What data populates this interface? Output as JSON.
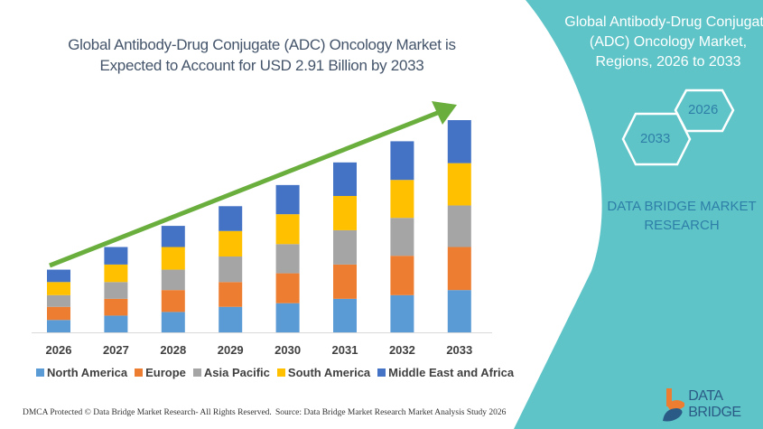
{
  "colors": {
    "panel": "#5fc4c7",
    "arrow": "#6aaf3d",
    "north_america": "#5b9bd5",
    "europe": "#ed7d31",
    "asia_pacific": "#a5a5a5",
    "south_america": "#ffc000",
    "mea": "#4472c4"
  },
  "chart_data": {
    "type": "bar",
    "stacked": true,
    "title": "Global Antibody-Drug Conjugate (ADC) Oncology Market is Expected to Account for USD 2.91 Billion by 2033",
    "categories": [
      "2026",
      "2027",
      "2028",
      "2029",
      "2030",
      "2031",
      "2032",
      "2033"
    ],
    "series": [
      {
        "name": "North America",
        "values": [
          0.17,
          0.23,
          0.28,
          0.35,
          0.4,
          0.46,
          0.51,
          0.58
        ]
      },
      {
        "name": "Europe",
        "values": [
          0.18,
          0.23,
          0.3,
          0.34,
          0.41,
          0.47,
          0.54,
          0.59
        ]
      },
      {
        "name": "Asia Pacific",
        "values": [
          0.16,
          0.23,
          0.28,
          0.35,
          0.4,
          0.47,
          0.52,
          0.57
        ]
      },
      {
        "name": "South America",
        "values": [
          0.18,
          0.24,
          0.31,
          0.35,
          0.41,
          0.47,
          0.52,
          0.58
        ]
      },
      {
        "name": "Middle East and Africa",
        "values": [
          0.17,
          0.24,
          0.29,
          0.34,
          0.4,
          0.46,
          0.53,
          0.59
        ]
      }
    ],
    "ylim": [
      0,
      2.91
    ],
    "grid": false,
    "legend_position": "bottom",
    "trend_arrow": true
  },
  "side": {
    "title_lines": [
      "Global Antibody-Drug Conjugate",
      "(ADC) Oncology Market,",
      "Regions, 2026 to 2033"
    ],
    "hex_start": "2026",
    "hex_end": "2033",
    "brand_lines": [
      "DATA BRIDGE MARKET",
      "RESEARCH"
    ]
  },
  "footer": {
    "copyright": "DMCA Protected © Data Bridge Market Research- All Rights Reserved.",
    "source": "Source: Data Bridge Market Research Market Analysis Study 2026"
  },
  "logo": {
    "text": "DATA BRIDGE"
  }
}
